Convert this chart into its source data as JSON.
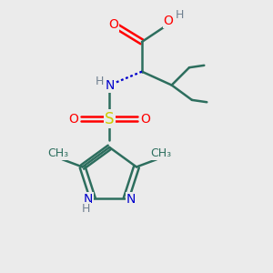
{
  "bg_color": "#ebebeb",
  "bond_color": "#2d6e5e",
  "bond_width": 1.8,
  "O_color": "#ff0000",
  "N_color": "#0000cc",
  "S_color": "#cccc00",
  "H_color": "#708090",
  "font_size": 10,
  "fig_size": [
    3.0,
    3.0
  ],
  "dpi": 100,
  "xlim": [
    0,
    10
  ],
  "ylim": [
    0,
    10
  ]
}
